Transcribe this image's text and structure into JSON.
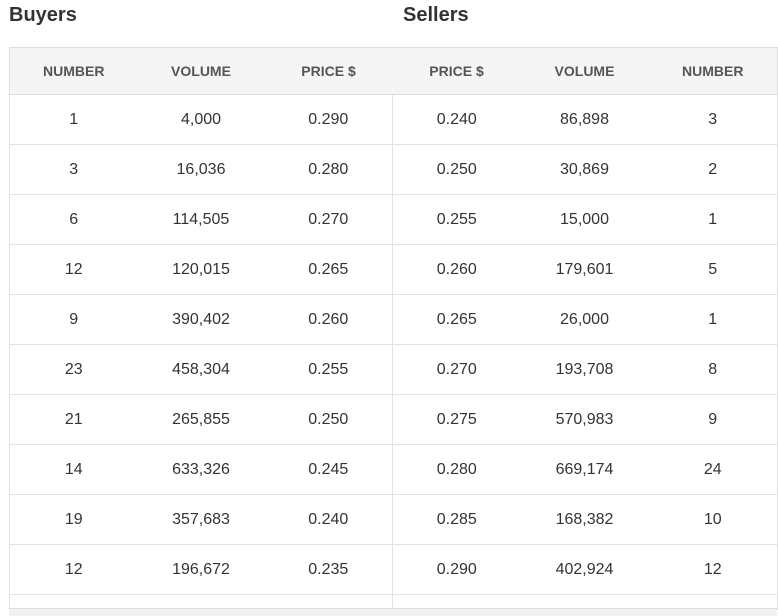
{
  "buyers_title": "Buyers",
  "sellers_title": "Sellers",
  "headers": [
    "NUMBER",
    "VOLUME",
    "PRICE $",
    "PRICE $",
    "VOLUME",
    "NUMBER"
  ],
  "rows": [
    {
      "buy_number": "1",
      "buy_volume": "4,000",
      "buy_price": "0.290",
      "sell_price": "0.240",
      "sell_volume": "86,898",
      "sell_number": "3"
    },
    {
      "buy_number": "3",
      "buy_volume": "16,036",
      "buy_price": "0.280",
      "sell_price": "0.250",
      "sell_volume": "30,869",
      "sell_number": "2"
    },
    {
      "buy_number": "6",
      "buy_volume": "114,505",
      "buy_price": "0.270",
      "sell_price": "0.255",
      "sell_volume": "15,000",
      "sell_number": "1"
    },
    {
      "buy_number": "12",
      "buy_volume": "120,015",
      "buy_price": "0.265",
      "sell_price": "0.260",
      "sell_volume": "179,601",
      "sell_number": "5"
    },
    {
      "buy_number": "9",
      "buy_volume": "390,402",
      "buy_price": "0.260",
      "sell_price": "0.265",
      "sell_volume": "26,000",
      "sell_number": "1"
    },
    {
      "buy_number": "23",
      "buy_volume": "458,304",
      "buy_price": "0.255",
      "sell_price": "0.270",
      "sell_volume": "193,708",
      "sell_number": "8"
    },
    {
      "buy_number": "21",
      "buy_volume": "265,855",
      "buy_price": "0.250",
      "sell_price": "0.275",
      "sell_volume": "570,983",
      "sell_number": "9"
    },
    {
      "buy_number": "14",
      "buy_volume": "633,326",
      "buy_price": "0.245",
      "sell_price": "0.280",
      "sell_volume": "669,174",
      "sell_number": "24"
    },
    {
      "buy_number": "19",
      "buy_volume": "357,683",
      "buy_price": "0.240",
      "sell_price": "0.285",
      "sell_volume": "168,382",
      "sell_number": "10"
    },
    {
      "buy_number": "12",
      "buy_volume": "196,672",
      "buy_price": "0.235",
      "sell_price": "0.290",
      "sell_volume": "402,924",
      "sell_number": "12"
    }
  ]
}
